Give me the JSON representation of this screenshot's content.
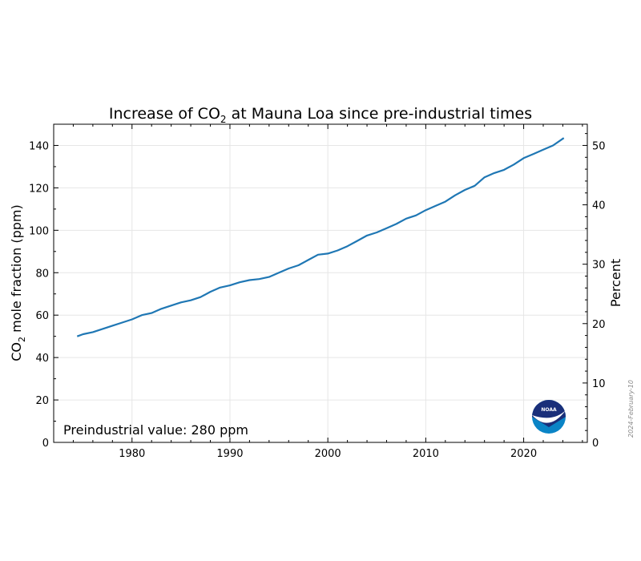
{
  "chart_data": {
    "type": "line",
    "title_prefix": "Increase of CO",
    "title_sub": "2",
    "title_suffix": " at Mauna Loa since pre-industrial times",
    "ylabel_prefix": "CO",
    "ylabel_sub": "2",
    "ylabel_suffix": " mole fraction (ppm)",
    "y2label": "Percent",
    "xlim": [
      1972,
      2026.5
    ],
    "ylim": [
      0,
      150
    ],
    "y2lim": [
      0,
      53.57
    ],
    "x_ticks": [
      1980,
      1990,
      2000,
      2010,
      2020
    ],
    "y_ticks": [
      0,
      20,
      40,
      60,
      80,
      100,
      120,
      140
    ],
    "y2_ticks": [
      0,
      10,
      20,
      30,
      40,
      50
    ],
    "grid": true,
    "annotation": "Preindustrial value: 280 ppm",
    "date_stamp": "2024-February-10",
    "logo_text": "NOAA",
    "series": [
      {
        "color": "#1f77b4",
        "x": [
          1974.4,
          1975,
          1976,
          1977,
          1978,
          1979,
          1980,
          1981,
          1982,
          1983,
          1984,
          1985,
          1986,
          1987,
          1988,
          1989,
          1990,
          1991,
          1992,
          1993,
          1994,
          1995,
          1996,
          1997,
          1998,
          1999,
          2000,
          2001,
          2002,
          2003,
          2004,
          2005,
          2006,
          2007,
          2008,
          2009,
          2010,
          2011,
          2012,
          2013,
          2014,
          2015,
          2016,
          2017,
          2018,
          2019,
          2020,
          2021,
          2022,
          2023,
          2024.1
        ],
        "y": [
          50,
          51,
          52,
          53.5,
          55,
          56.5,
          58,
          60,
          61,
          63,
          64.5,
          66,
          67,
          68.5,
          71,
          73,
          74,
          75.5,
          76.5,
          77,
          78,
          80,
          82,
          83.5,
          86,
          88.5,
          89,
          90.5,
          92.5,
          95,
          97.5,
          99,
          101,
          103,
          105.5,
          107,
          109.5,
          111.5,
          113.5,
          116.5,
          119,
          121,
          125,
          127,
          128.5,
          131,
          134,
          136,
          138,
          140,
          143.5
        ]
      }
    ]
  }
}
